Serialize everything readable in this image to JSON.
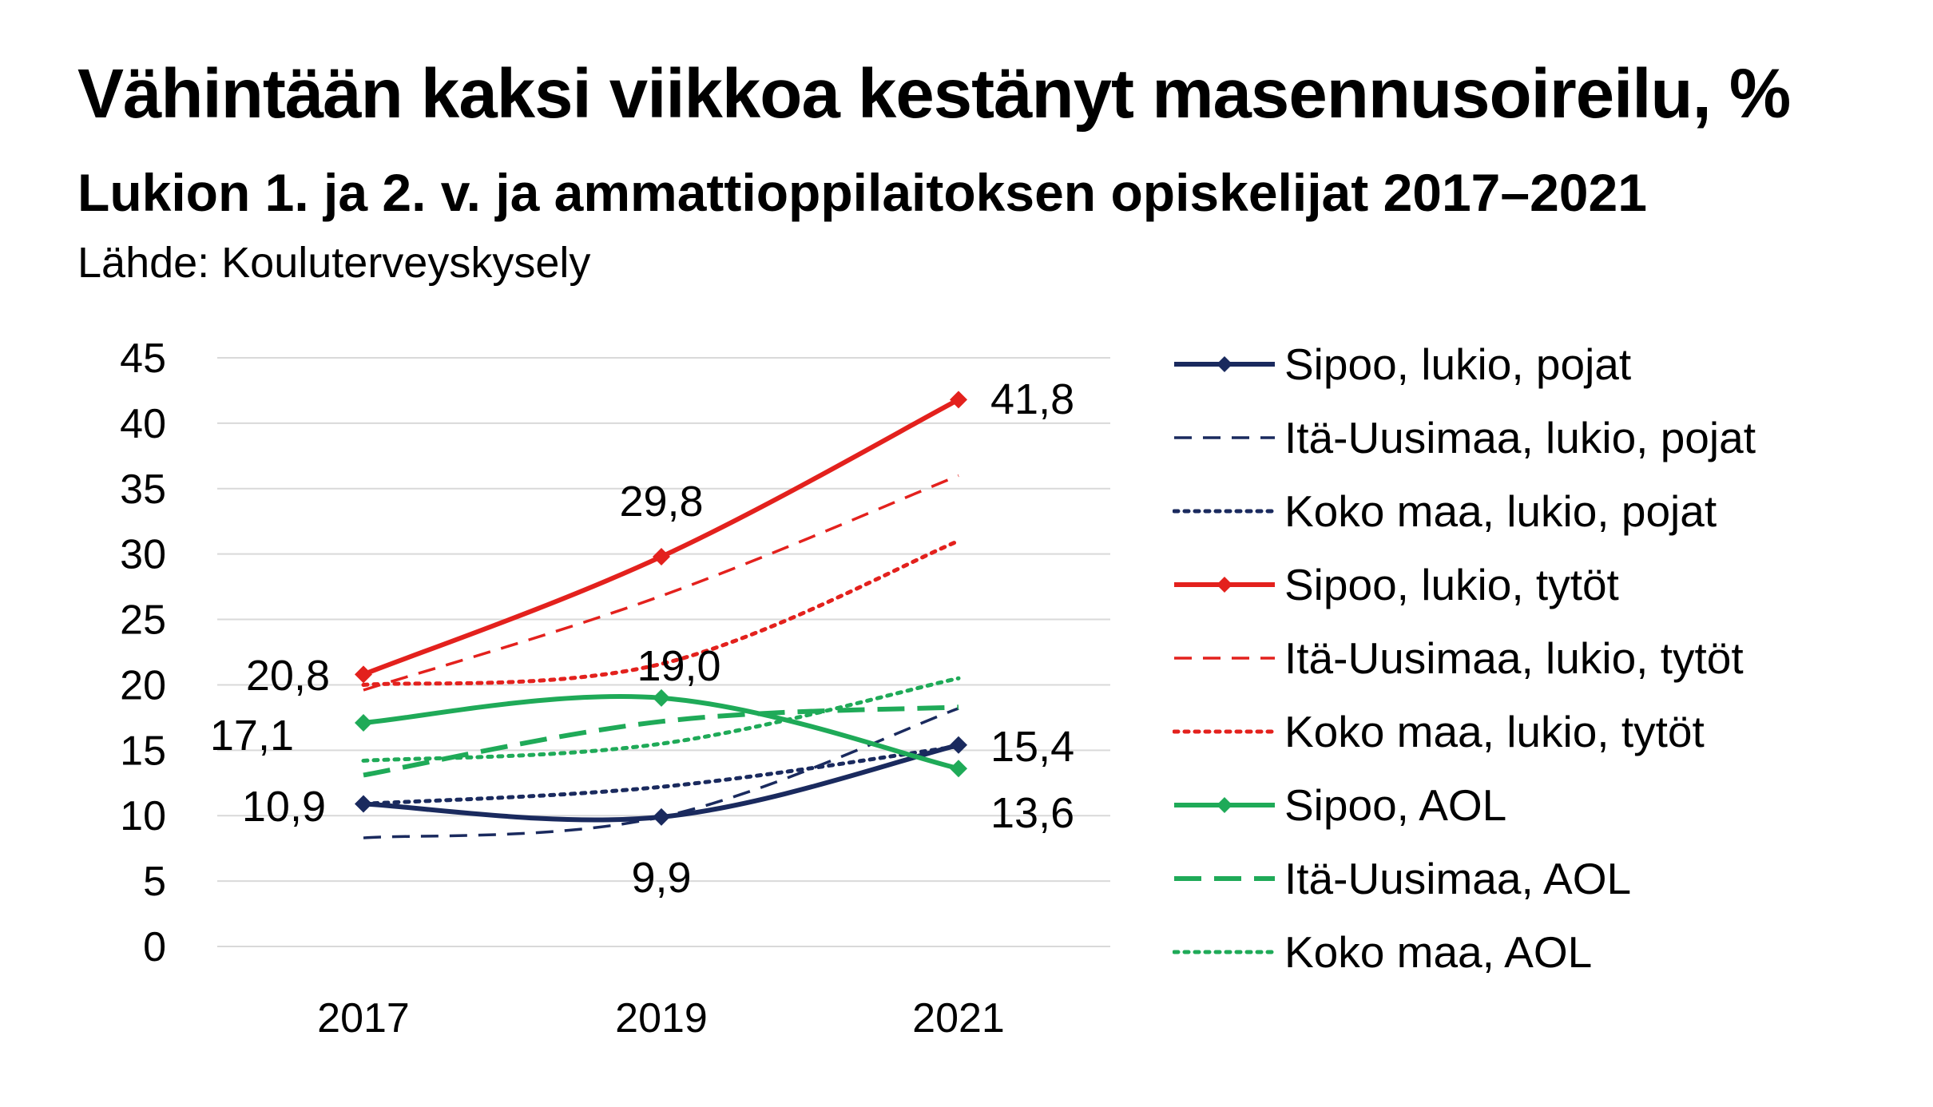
{
  "title": "Vähintään kaksi viikkoa kestänyt masennusoireilu, %",
  "subtitle": "Lukion 1. ja 2. v. ja ammattioppilaitoksen opiskelijat 2017–2021",
  "source": "Lähde: Kouluterveyskysely",
  "chart_data": {
    "type": "line",
    "categories": [
      "2017",
      "2019",
      "2021"
    ],
    "ylim": [
      0,
      45
    ],
    "yticks": [
      "0",
      "5",
      "10",
      "15",
      "20",
      "25",
      "30",
      "35",
      "40",
      "45"
    ],
    "grid": true,
    "legend_position": "right",
    "series": [
      {
        "name": "Sipoo, lukio, pojat",
        "values": [
          10.9,
          9.9,
          15.4
        ],
        "color": "#1a2a5e",
        "style": "solid",
        "markers": true,
        "labels": [
          "10,9",
          "9,9",
          "15,4"
        ]
      },
      {
        "name": "Itä-Uusimaa, lukio, pojat",
        "values": [
          8.3,
          9.9,
          18.2
        ],
        "color": "#1a2a5e",
        "style": "dashed"
      },
      {
        "name": "Koko maa, lukio, pojat",
        "values": [
          10.9,
          12.2,
          15.3
        ],
        "color": "#1a2a5e",
        "style": "dotted"
      },
      {
        "name": "Sipoo, lukio, tytöt",
        "values": [
          20.8,
          29.8,
          41.8
        ],
        "color": "#e3211d",
        "style": "solid",
        "markers": true,
        "labels": [
          "20,8",
          "29,8",
          "41,8"
        ]
      },
      {
        "name": "Itä-Uusimaa, lukio, tytöt",
        "values": [
          19.6,
          26.8,
          36.0
        ],
        "color": "#e3211d",
        "style": "dashed"
      },
      {
        "name": "Koko maa, lukio, tytöt",
        "values": [
          20.0,
          21.6,
          31.0
        ],
        "color": "#e3211d",
        "style": "dotted"
      },
      {
        "name": "Sipoo, AOL",
        "values": [
          17.1,
          19.0,
          13.6
        ],
        "color": "#1faa58",
        "style": "solid",
        "markers": true,
        "labels": [
          "17,1",
          "19,0",
          "13,6"
        ]
      },
      {
        "name": "Itä-Uusimaa, AOL",
        "values": [
          13.1,
          17.2,
          18.3
        ],
        "color": "#1faa58",
        "style": "dashed-long"
      },
      {
        "name": "Koko maa, AOL",
        "values": [
          14.2,
          15.5,
          20.5
        ],
        "color": "#1faa58",
        "style": "dotted"
      }
    ]
  }
}
